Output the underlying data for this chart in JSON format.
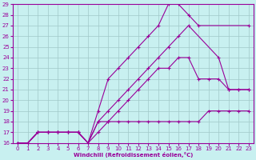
{
  "xlabel": "Windchill (Refroidissement éolien,°C)",
  "bg_color": "#c8f0f0",
  "grid_color": "#a0c8c8",
  "line_color": "#990099",
  "xlim": [
    -0.5,
    23.5
  ],
  "ylim": [
    16,
    29
  ],
  "xticks": [
    0,
    1,
    2,
    3,
    4,
    5,
    6,
    7,
    8,
    9,
    10,
    11,
    12,
    13,
    14,
    15,
    16,
    17,
    18,
    19,
    20,
    21,
    22,
    23
  ],
  "yticks": [
    16,
    17,
    18,
    19,
    20,
    21,
    22,
    23,
    24,
    25,
    26,
    27,
    28,
    29
  ],
  "series": [
    {
      "x": [
        0,
        1,
        2,
        3,
        4,
        5,
        6,
        7,
        8,
        9,
        10,
        11,
        12,
        13,
        14,
        15,
        16,
        17,
        18,
        23
      ],
      "y": [
        16,
        16,
        17,
        17,
        17,
        17,
        17,
        16,
        19,
        22,
        23,
        24,
        25,
        26,
        27,
        29,
        29,
        28,
        27,
        27
      ]
    },
    {
      "x": [
        0,
        1,
        2,
        3,
        4,
        5,
        6,
        7,
        8,
        9,
        10,
        11,
        12,
        13,
        14,
        15,
        16,
        17,
        20,
        21,
        22,
        23
      ],
      "y": [
        16,
        16,
        17,
        17,
        17,
        17,
        17,
        16,
        18,
        19,
        20,
        21,
        22,
        23,
        24,
        25,
        26,
        27,
        24,
        21,
        21,
        21
      ]
    },
    {
      "x": [
        0,
        1,
        2,
        3,
        4,
        5,
        6,
        7,
        8,
        9,
        10,
        11,
        12,
        13,
        14,
        15,
        16,
        17,
        18,
        19,
        20,
        21,
        22,
        23
      ],
      "y": [
        16,
        16,
        17,
        17,
        17,
        17,
        17,
        16,
        18,
        18,
        19,
        20,
        21,
        22,
        23,
        23,
        24,
        24,
        22,
        22,
        22,
        21,
        21,
        21
      ]
    },
    {
      "x": [
        0,
        1,
        2,
        3,
        4,
        5,
        6,
        7,
        8,
        9,
        10,
        11,
        12,
        13,
        14,
        15,
        16,
        17,
        18,
        19,
        20,
        21,
        22,
        23
      ],
      "y": [
        16,
        16,
        17,
        17,
        17,
        17,
        17,
        16,
        17,
        18,
        18,
        18,
        18,
        18,
        18,
        18,
        18,
        18,
        18,
        19,
        19,
        19,
        19,
        19
      ]
    }
  ]
}
